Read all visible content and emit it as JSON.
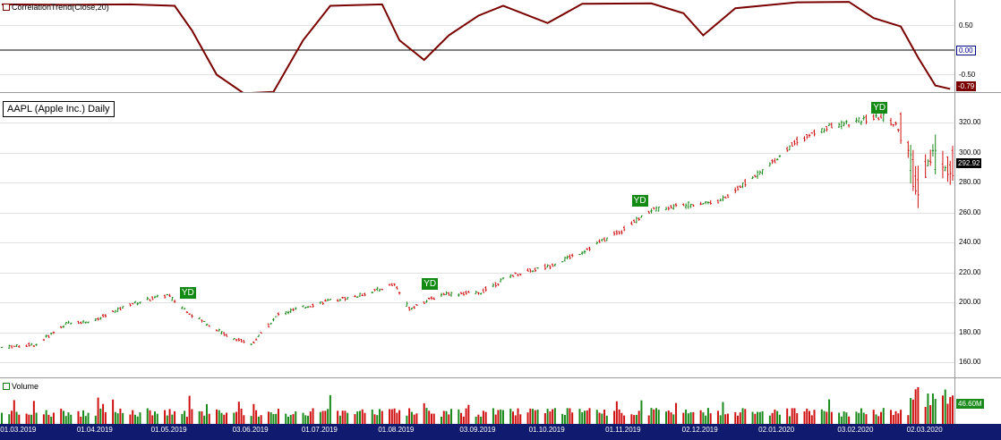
{
  "indicator": {
    "title": "CorrelationTrend(Close,20)",
    "ticks": [
      "0.50",
      "0.00",
      "-0.50"
    ],
    "current_value": "-0.79",
    "zero_value": "0.00",
    "line_color": "#7a0000"
  },
  "price": {
    "symbol_label": "AAPL (Apple Inc.) Daily",
    "ticks": [
      "320.00",
      "300.00",
      "280.00",
      "260.00",
      "240.00",
      "220.00",
      "200.00",
      "180.00",
      "160.00"
    ],
    "current_value": "292.92",
    "signal_label": "YD"
  },
  "volume": {
    "title": "Volume",
    "current_value": "46.60M",
    "up_color": "#1a8a1a",
    "down_color": "#d01010"
  },
  "time_axis": {
    "labels": [
      "01.03.2019",
      "01.04.2019",
      "01.05.2019",
      "03.06.2019",
      "01.07.2019",
      "01.08.2019",
      "03.09.2019",
      "01.10.2019",
      "01.11.2019",
      "02.12.2019",
      "02.01.2020",
      "03.02.2020",
      "02.03.2020"
    ]
  },
  "chart_data": {
    "type": "candlestick",
    "symbol": "AAPL (Apple Inc.) Daily",
    "x_range": [
      "2019-02-22",
      "2020-03-13"
    ],
    "price_range": [
      150,
      340
    ],
    "price_last": 292.92,
    "price_path": [
      [
        "2019-02-22",
        170
      ],
      [
        "2019-03-08",
        172
      ],
      [
        "2019-03-20",
        186
      ],
      [
        "2019-04-01",
        188
      ],
      [
        "2019-04-15",
        199
      ],
      [
        "2019-04-30",
        205
      ],
      [
        "2019-05-10",
        192
      ],
      [
        "2019-05-24",
        178
      ],
      [
        "2019-06-03",
        172
      ],
      [
        "2019-06-14",
        192
      ],
      [
        "2019-07-01",
        200
      ],
      [
        "2019-07-15",
        204
      ],
      [
        "2019-07-31",
        212
      ],
      [
        "2019-08-06",
        196
      ],
      [
        "2019-08-20",
        206
      ],
      [
        "2019-09-03",
        206
      ],
      [
        "2019-09-16",
        218
      ],
      [
        "2019-10-01",
        224
      ],
      [
        "2019-10-15",
        234
      ],
      [
        "2019-10-31",
        248
      ],
      [
        "2019-11-12",
        262
      ],
      [
        "2019-11-29",
        266
      ],
      [
        "2019-12-10",
        268
      ],
      [
        "2019-12-27",
        288
      ],
      [
        "2020-01-10",
        308
      ],
      [
        "2020-01-24",
        318
      ],
      [
        "2020-02-06",
        322
      ],
      [
        "2020-02-14",
        324
      ],
      [
        "2020-02-21",
        316
      ],
      [
        "2020-02-28",
        275
      ],
      [
        "2020-03-04",
        300
      ],
      [
        "2020-03-12",
        292
      ]
    ],
    "indicator_name": "CorrelationTrend(Close,20)",
    "indicator_range": [
      -1.0,
      1.0
    ],
    "indicator_last": -0.79,
    "indicator_path": [
      [
        "2019-02-22",
        0.93
      ],
      [
        "2019-03-20",
        0.92
      ],
      [
        "2019-04-15",
        0.93
      ],
      [
        "2019-05-03",
        0.9
      ],
      [
        "2019-05-10",
        0.4
      ],
      [
        "2019-05-20",
        -0.5
      ],
      [
        "2019-05-31",
        -0.88
      ],
      [
        "2019-06-12",
        -0.85
      ],
      [
        "2019-06-24",
        0.2
      ],
      [
        "2019-07-05",
        0.9
      ],
      [
        "2019-07-26",
        0.93
      ],
      [
        "2019-08-02",
        0.2
      ],
      [
        "2019-08-12",
        -0.2
      ],
      [
        "2019-08-22",
        0.3
      ],
      [
        "2019-09-03",
        0.7
      ],
      [
        "2019-09-13",
        0.9
      ],
      [
        "2019-10-01",
        0.55
      ],
      [
        "2019-10-15",
        0.94
      ],
      [
        "2019-11-12",
        0.95
      ],
      [
        "2019-11-25",
        0.75
      ],
      [
        "2019-12-03",
        0.3
      ],
      [
        "2019-12-16",
        0.85
      ],
      [
        "2020-01-10",
        0.97
      ],
      [
        "2020-01-31",
        0.98
      ],
      [
        "2020-02-10",
        0.65
      ],
      [
        "2020-02-21",
        0.48
      ],
      [
        "2020-02-28",
        -0.15
      ],
      [
        "2020-03-06",
        -0.72
      ],
      [
        "2020-03-12",
        -0.79
      ]
    ],
    "signals": [
      {
        "label": "YD",
        "date": "2019-05-08",
        "price": 206
      },
      {
        "label": "YD",
        "date": "2019-08-14",
        "price": 212
      },
      {
        "label": "YD",
        "date": "2019-11-07",
        "price": 268
      },
      {
        "label": "YD",
        "date": "2020-02-12",
        "price": 330
      }
    ],
    "volume_last": "46.60M"
  }
}
